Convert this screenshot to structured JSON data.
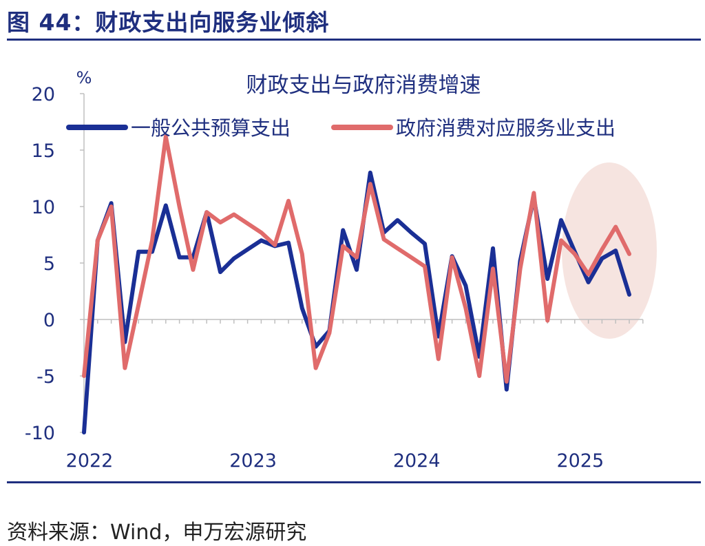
{
  "figure": {
    "title": "图 44：财政支出向服务业倾斜",
    "source": "资料来源：Wind，申万宏源研究"
  },
  "colors": {
    "accent": "#1f2f7f",
    "series_blue": "#1a2f95",
    "series_red": "#e06b6b",
    "highlight": "#f4ddd8"
  },
  "chart_data": {
    "type": "line",
    "title": "财政支出与政府消费增速",
    "ylabel": "%",
    "xlabel": "",
    "ylim": [
      -10,
      20
    ],
    "yticks": [
      -10,
      -5,
      0,
      5,
      10,
      15,
      20
    ],
    "year_labels": [
      "2022",
      "2023",
      "2024",
      "2025"
    ],
    "x_start": "2022-01",
    "legend_position": "top",
    "grid": false,
    "highlight_region": "2025",
    "series": [
      {
        "name": "一般公共预算支出",
        "color": "#1a2f95",
        "values": [
          -10,
          7,
          10.3,
          -2,
          6,
          6,
          10.1,
          5.5,
          5.5,
          9.5,
          4.2,
          5.4,
          6.2,
          7,
          6.5,
          6.8,
          1,
          -2.4,
          -1,
          7.9,
          4.4,
          13,
          7.7,
          8.8,
          7.7,
          6.7,
          -1.5,
          5.6,
          3,
          -3.3,
          6.3,
          -6.2,
          5.2,
          10.8,
          3.6,
          8.8,
          6,
          3.3,
          5.4,
          6.1,
          2.2
        ]
      },
      {
        "name": "政府消费对应服务业支出",
        "color": "#e06b6b",
        "values": [
          -5,
          7,
          10,
          -4.3,
          1.3,
          7,
          16.2,
          10,
          4.4,
          9.5,
          8.6,
          9.3,
          8.5,
          7.7,
          6.6,
          10.5,
          5.8,
          -4.3,
          -1.2,
          6.5,
          5.5,
          12,
          7.1,
          6.3,
          5.5,
          4.7,
          -3.5,
          5.5,
          1,
          -5,
          4.5,
          -5.5,
          4.5,
          11.2,
          -0.1,
          7,
          5.8,
          4,
          6.2,
          8.2,
          5.8
        ]
      }
    ]
  }
}
